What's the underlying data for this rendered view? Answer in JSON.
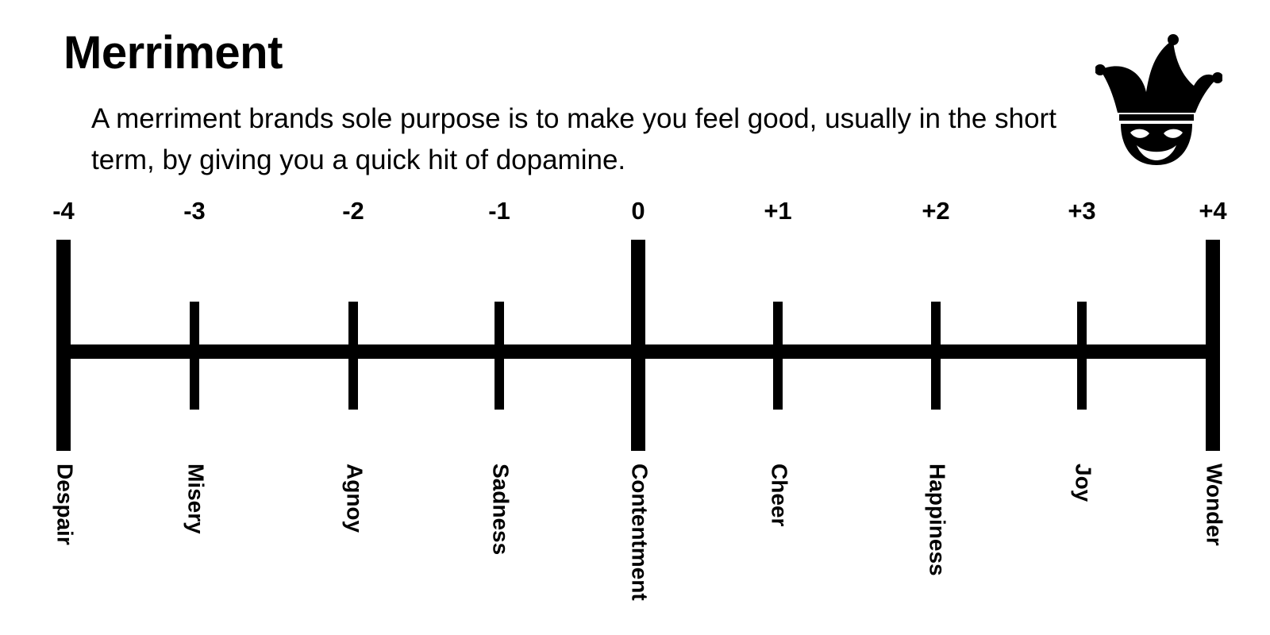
{
  "header": {
    "title": "Merriment",
    "description": "A merriment brands sole purpose is to make you feel good, usually in the short term, by giving you a quick hit of dopamine."
  },
  "icon": {
    "name": "jester-mask-icon"
  },
  "colors": {
    "ink": "#000000",
    "background": "#ffffff"
  },
  "scale": {
    "points": [
      {
        "value": "-4",
        "label": "Despair",
        "tick": "major"
      },
      {
        "value": "-3",
        "label": "Misery",
        "tick": "minor"
      },
      {
        "value": "-2",
        "label": "Agnoy",
        "tick": "minor"
      },
      {
        "value": "-1",
        "label": "Sadness",
        "tick": "minor"
      },
      {
        "value": "0",
        "label": "Contentment",
        "tick": "major"
      },
      {
        "value": "+1",
        "label": "Cheer",
        "tick": "minor"
      },
      {
        "value": "+2",
        "label": "Happiness",
        "tick": "minor"
      },
      {
        "value": "+3",
        "label": "Joy",
        "tick": "minor"
      },
      {
        "value": "+4",
        "label": "Wonder",
        "tick": "major"
      }
    ]
  }
}
